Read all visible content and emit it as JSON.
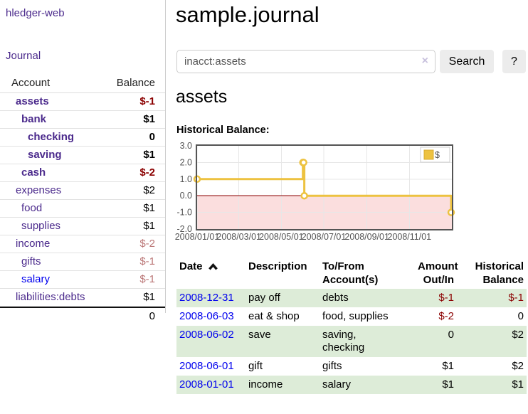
{
  "app": {
    "brand": "hledger-web"
  },
  "sidebar": {
    "journal_link": "Journal",
    "header": {
      "account": "Account",
      "balance": "Balance"
    },
    "accounts": [
      {
        "name": "assets",
        "level": 1,
        "bold": true,
        "balance": "$-1",
        "balance_class": "neg-strong"
      },
      {
        "name": "bank",
        "level": 2,
        "bold": true,
        "balance": "$1",
        "balance_class": ""
      },
      {
        "name": "checking",
        "level": 3,
        "bold": true,
        "balance": "0",
        "balance_class": ""
      },
      {
        "name": "saving",
        "level": 3,
        "bold": true,
        "balance": "$1",
        "balance_class": ""
      },
      {
        "name": "cash",
        "level": 2,
        "bold": true,
        "balance": "$-2",
        "balance_class": "neg-strong"
      },
      {
        "name": "expenses",
        "level": 1,
        "bold": false,
        "balance": "$2",
        "balance_class": ""
      },
      {
        "name": "food",
        "level": 2,
        "bold": false,
        "balance": "$1",
        "balance_class": ""
      },
      {
        "name": "supplies",
        "level": 2,
        "bold": false,
        "balance": "$1",
        "balance_class": ""
      },
      {
        "name": "income",
        "level": 1,
        "bold": false,
        "balance": "$-2",
        "balance_class": "neg-muted"
      },
      {
        "name": "gifts",
        "level": 2,
        "bold": false,
        "balance": "$-1",
        "balance_class": "neg-muted"
      },
      {
        "name": "salary",
        "level": 2,
        "bold": false,
        "link_blue": true,
        "balance": "$-1",
        "balance_class": "neg-muted"
      },
      {
        "name": "liabilities:debts",
        "level": 1,
        "bold": false,
        "balance": "$1",
        "balance_class": ""
      }
    ],
    "total": "0"
  },
  "main": {
    "title": "sample.journal",
    "search": {
      "value": "inacct:assets",
      "clear_icon": "×",
      "search_button": "Search",
      "help_button": "?"
    },
    "account_heading": "assets",
    "chart_title": "Historical Balance:"
  },
  "chart_data": {
    "type": "line",
    "step": true,
    "title": "Historical Balance of assets",
    "series": [
      {
        "name": "$",
        "color": "#edc240",
        "points": [
          {
            "x": "2008-01-01",
            "y": 1
          },
          {
            "x": "2008-06-01",
            "y": 2
          },
          {
            "x": "2008-06-02",
            "y": 2
          },
          {
            "x": "2008-06-03",
            "y": 0
          },
          {
            "x": "2008-12-31",
            "y": -1
          }
        ]
      }
    ],
    "xmin": "2008-01-01",
    "xmax": "2009-01-01",
    "ylim": [
      -2,
      3
    ],
    "x_ticks": [
      "2008/01/01",
      "2008/03/01",
      "2008/05/01",
      "2008/07/01",
      "2008/09/01",
      "2008/11/01"
    ],
    "y_ticks": [
      {
        "v": 3,
        "label": "3.0"
      },
      {
        "v": 2,
        "label": "2.0"
      },
      {
        "v": 1,
        "label": "1.0"
      },
      {
        "v": 0,
        "label": "0.0"
      },
      {
        "v": -1,
        "label": "-1.0"
      },
      {
        "v": -2,
        "label": "-2.0"
      }
    ],
    "legend": {
      "label": "$",
      "position": "top-right"
    },
    "grid": true,
    "negative_region_fill": "#fbdede",
    "zero_line_color": "#8b0000",
    "plot_border_color": "#545454"
  },
  "register": {
    "columns": [
      "Date",
      "Description",
      "To/From\nAccount(s)",
      "Amount\nOut/In",
      "Historical\nBalance"
    ],
    "sort": {
      "column": "Date",
      "direction": "ascending"
    },
    "rows": [
      {
        "date": "2008-12-31",
        "description": "pay off",
        "accounts": "debts",
        "amount": "$-1",
        "amount_negative": true,
        "balance": "$-1",
        "balance_negative": true
      },
      {
        "date": "2008-06-03",
        "description": "eat & shop",
        "accounts": "food, supplies",
        "amount": "$-2",
        "amount_negative": true,
        "balance": "0",
        "balance_negative": false
      },
      {
        "date": "2008-06-02",
        "description": "save",
        "accounts": "saving,\nchecking",
        "amount": "0",
        "amount_negative": false,
        "balance": "$2",
        "balance_negative": false
      },
      {
        "date": "2008-06-01",
        "description": "gift",
        "accounts": "gifts",
        "amount": "$1",
        "amount_negative": false,
        "balance": "$2",
        "balance_negative": false
      },
      {
        "date": "2008-01-01",
        "description": "income",
        "accounts": "salary",
        "amount": "$1",
        "amount_negative": false,
        "balance": "$1",
        "balance_negative": false
      }
    ]
  },
  "colors": {
    "link_purple": "#4b2a8c",
    "link_blue": "#0000ee",
    "negative_strong": "#8b0000",
    "negative_muted": "#bb7777",
    "row_green": "#ddecd8",
    "series_yellow": "#edc240",
    "button_gray": "#ececec"
  }
}
